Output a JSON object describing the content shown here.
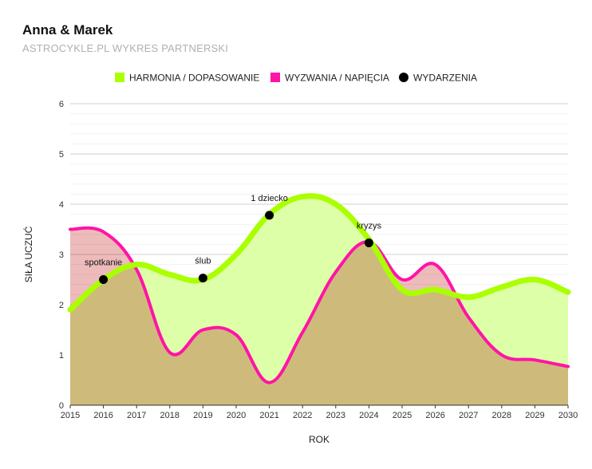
{
  "header": {
    "title": "Anna & Marek",
    "subtitle": "ASTROCYKLE.PL WYKRES PARTNERSKI"
  },
  "chart_data": {
    "type": "area",
    "title": "Anna & Marek",
    "subtitle": "ASTROCYKLE.PL WYKRES PARTNERSKI",
    "xlabel": "ROK",
    "ylabel": "SIŁA UCZUĆ",
    "xlim": [
      2015,
      2030
    ],
    "ylim": [
      0,
      6
    ],
    "x_ticks": [
      2015,
      2016,
      2017,
      2018,
      2019,
      2020,
      2021,
      2022,
      2023,
      2024,
      2025,
      2026,
      2027,
      2028,
      2029,
      2030
    ],
    "y_ticks": [
      0,
      1,
      2,
      3,
      4,
      5,
      6
    ],
    "grid": true,
    "legend_position": "top",
    "series": [
      {
        "name": "HARMONIA / DOPASOWANIE",
        "color": "#aaff00",
        "fill": "#ddffa8",
        "x": [
          2015,
          2016,
          2017,
          2018,
          2019,
          2020,
          2021,
          2022,
          2023,
          2024,
          2025,
          2026,
          2027,
          2028,
          2029,
          2030
        ],
        "values": [
          1.9,
          2.5,
          2.8,
          2.6,
          2.5,
          3.0,
          3.8,
          4.15,
          4.0,
          3.3,
          2.3,
          2.3,
          2.15,
          2.35,
          2.5,
          2.25
        ]
      },
      {
        "name": "WYZWANIA / NAPIĘCIA",
        "color": "#ff14a8",
        "fill": "#eaaaaa",
        "x": [
          2015,
          2016,
          2017,
          2018,
          2019,
          2020,
          2021,
          2022,
          2023,
          2024,
          2025,
          2026,
          2027,
          2028,
          2029,
          2030
        ],
        "values": [
          3.5,
          3.45,
          2.7,
          1.05,
          1.5,
          1.4,
          0.45,
          1.45,
          2.65,
          3.25,
          2.5,
          2.8,
          1.75,
          1.0,
          0.9,
          0.77
        ]
      }
    ],
    "events": {
      "name": "WYDARZENIA",
      "color": "#000000",
      "points": [
        {
          "x": 2016,
          "y": 2.5,
          "label": "spotkanie"
        },
        {
          "x": 2019,
          "y": 2.53,
          "label": "ślub"
        },
        {
          "x": 2021,
          "y": 3.78,
          "label": "1 dziecko"
        },
        {
          "x": 2024,
          "y": 3.23,
          "label": "kryzys"
        }
      ]
    }
  }
}
